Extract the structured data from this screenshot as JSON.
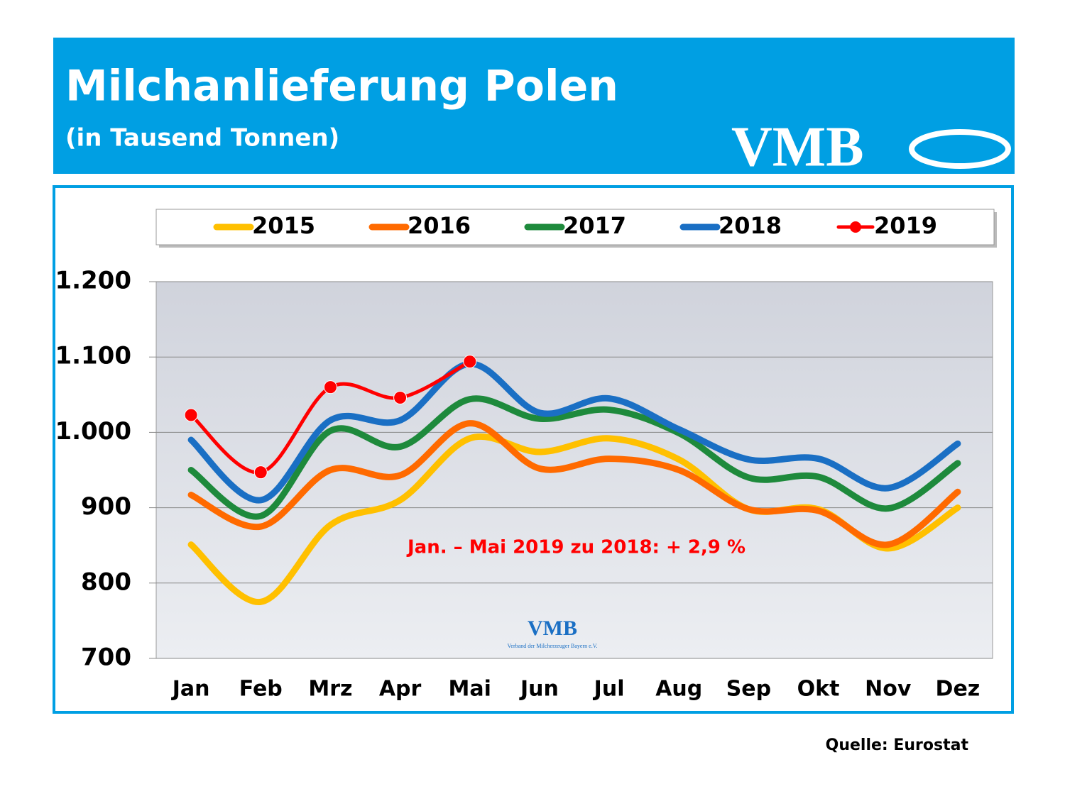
{
  "chart_data": {
    "type": "line",
    "title": "Milchanlieferung Polen",
    "subtitle": "(in Tausend Tonnen)",
    "logo": "VMB",
    "watermark": "VMB",
    "watermark_subtitle": "Verband der Milcherzeuger Bayern e.V.",
    "annotation": "Jan. – Mai 2019 zu 2018: + 2,9 %",
    "source": "Quelle: Eurostat",
    "categories": [
      "Jan",
      "Feb",
      "Mrz",
      "Apr",
      "Mai",
      "Jun",
      "Jul",
      "Aug",
      "Sep",
      "Okt",
      "Nov",
      "Dez"
    ],
    "series": [
      {
        "name": "2015",
        "color": "#ffc000",
        "values": [
          851,
          775,
          877,
          910,
          992,
          974,
          992,
          964,
          898,
          898,
          846,
          900
        ]
      },
      {
        "name": "2016",
        "color": "#ff6a00",
        "values": [
          917,
          875,
          950,
          943,
          1012,
          952,
          965,
          950,
          898,
          896,
          851,
          921
        ]
      },
      {
        "name": "2017",
        "color": "#1e8a3c",
        "values": [
          950,
          889,
          1002,
          981,
          1044,
          1018,
          1030,
          999,
          940,
          941,
          899,
          959
        ]
      },
      {
        "name": "2018",
        "color": "#1a6fc4",
        "values": [
          990,
          910,
          1016,
          1016,
          1091,
          1026,
          1045,
          1004,
          964,
          965,
          926,
          985
        ]
      },
      {
        "name": "2019",
        "color": "#ff0000",
        "markers": true,
        "values": [
          1023,
          947,
          1060,
          1046,
          1094,
          null,
          null,
          null,
          null,
          null,
          null,
          null
        ]
      }
    ],
    "ylim": [
      700,
      1200
    ],
    "yticks": [
      700,
      800,
      900,
      {
        "value": 1000,
        "label": "1.000"
      },
      {
        "value": 1100,
        "label": "1.100"
      },
      {
        "value": 1200,
        "label": "1.200"
      }
    ],
    "grid": true
  }
}
